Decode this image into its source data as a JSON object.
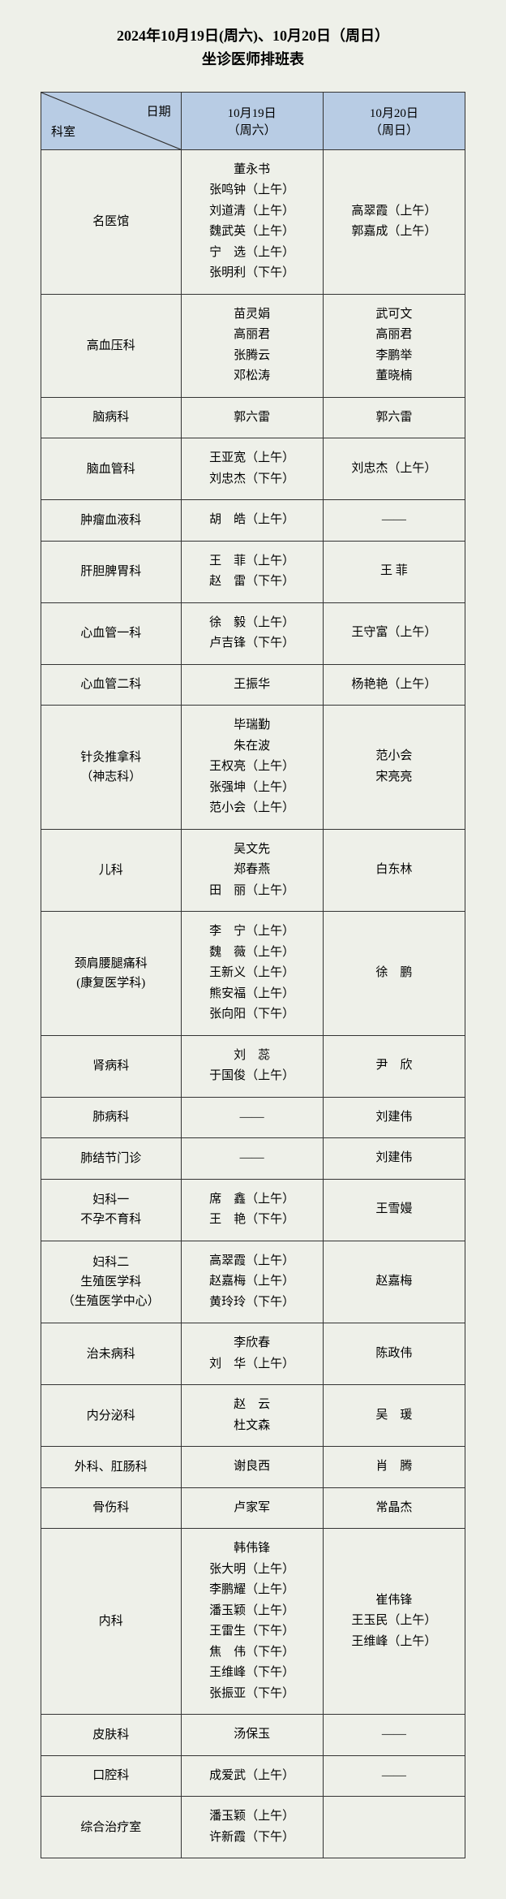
{
  "title_line1": "2024年10月19日(周六)、10月20日（周日）",
  "title_line2": "坐诊医师排班表",
  "header": {
    "corner_top": "日期",
    "corner_bottom": "科室",
    "col1": "10月19日\n（周六）",
    "col2": "10月20日\n（周日）"
  },
  "rows": [
    {
      "dept": "名医馆",
      "sat": [
        "董永书",
        "张鸣钟（上午）",
        "刘道清（上午）",
        "魏武英（上午）",
        "宁　选（上午）",
        "张明利（下午）"
      ],
      "sun": [
        "高翠霞（上午）",
        "郭嘉成（上午）"
      ]
    },
    {
      "dept": "高血压科",
      "sat": [
        "苗灵娟",
        "高丽君",
        "张腾云",
        "邓松涛"
      ],
      "sun": [
        "武可文",
        "高丽君",
        "李鹏举",
        "董晓楠"
      ]
    },
    {
      "dept": "脑病科",
      "sat": [
        "郭六雷"
      ],
      "sun": [
        "郭六雷"
      ]
    },
    {
      "dept": "脑血管科",
      "sat": [
        "王亚宽（上午）",
        "刘忠杰（下午）"
      ],
      "sun": [
        "刘忠杰（上午）"
      ]
    },
    {
      "dept": "肿瘤血液科",
      "sat": [
        "胡　皓（上午）"
      ],
      "sun": [
        "——"
      ]
    },
    {
      "dept": "肝胆脾胃科",
      "sat": [
        "王　菲（上午）",
        "赵　雷（下午）"
      ],
      "sun": [
        "王 菲"
      ]
    },
    {
      "dept": "心血管一科",
      "sat": [
        "徐　毅（上午）",
        "卢吉锋（下午）"
      ],
      "sun": [
        "王守富（上午）"
      ]
    },
    {
      "dept": "心血管二科",
      "sat": [
        "王振华"
      ],
      "sun": [
        "杨艳艳（上午）"
      ]
    },
    {
      "dept": "针灸推拿科\n（神志科）",
      "sat": [
        "毕瑞勤",
        "朱在波",
        "王权亮（上午）",
        "张强坤（上午）",
        "范小会（上午）"
      ],
      "sun": [
        "范小会",
        "宋亮亮"
      ]
    },
    {
      "dept": "儿科",
      "sat": [
        "吴文先",
        "郑春燕",
        "田　丽（上午）"
      ],
      "sun": [
        "白东林"
      ]
    },
    {
      "dept": "颈肩腰腿痛科\n(康复医学科)",
      "sat": [
        "李　宁（上午）",
        "魏　薇（上午）",
        "王新义（上午）",
        "熊安福（上午）",
        "张向阳（下午）"
      ],
      "sun": [
        "徐　鹏"
      ]
    },
    {
      "dept": "肾病科",
      "sat": [
        "刘　蕊",
        "于国俊（上午）"
      ],
      "sun": [
        "尹　欣"
      ]
    },
    {
      "dept": "肺病科",
      "sat": [
        "——"
      ],
      "sun": [
        "刘建伟"
      ]
    },
    {
      "dept": "肺结节门诊",
      "sat": [
        "——"
      ],
      "sun": [
        "刘建伟"
      ]
    },
    {
      "dept": "妇科一\n不孕不育科",
      "sat": [
        "席　鑫（上午）",
        "王　艳（下午）"
      ],
      "sun": [
        "王雪嫚"
      ]
    },
    {
      "dept": "妇科二\n生殖医学科\n（生殖医学中心）",
      "sat": [
        "高翠霞（上午）",
        "赵嘉梅（上午）",
        "黄玲玲（下午）"
      ],
      "sun": [
        "赵嘉梅"
      ]
    },
    {
      "dept": "治未病科",
      "sat": [
        "李欣春",
        "刘　华（上午）"
      ],
      "sun": [
        "陈政伟"
      ]
    },
    {
      "dept": "内分泌科",
      "sat": [
        "赵　云",
        "杜文森"
      ],
      "sun": [
        "吴　瑗"
      ]
    },
    {
      "dept": "外科、肛肠科",
      "sat": [
        "谢良西"
      ],
      "sun": [
        "肖　腾"
      ]
    },
    {
      "dept": "骨伤科",
      "sat": [
        "卢家军"
      ],
      "sun": [
        "常晶杰"
      ]
    },
    {
      "dept": "内科",
      "sat": [
        "韩伟锋",
        "张大明（上午）",
        "李鹏耀（上午）",
        "潘玉颖（上午）",
        "王雷生（下午）",
        "焦　伟（下午）",
        "王维峰（下午）",
        "张振亚（下午）"
      ],
      "sun": [
        "崔伟锋",
        "王玉民（上午）",
        "王维峰（上午）"
      ]
    },
    {
      "dept": "皮肤科",
      "sat": [
        "汤保玉"
      ],
      "sun": [
        "——"
      ]
    },
    {
      "dept": "口腔科",
      "sat": [
        "成爱武（上午）"
      ],
      "sun": [
        "——"
      ]
    },
    {
      "dept": "综合治疗室",
      "sat": [
        "潘玉颖（上午）",
        "许新霞（下午）"
      ],
      "sun": [
        ""
      ]
    }
  ]
}
